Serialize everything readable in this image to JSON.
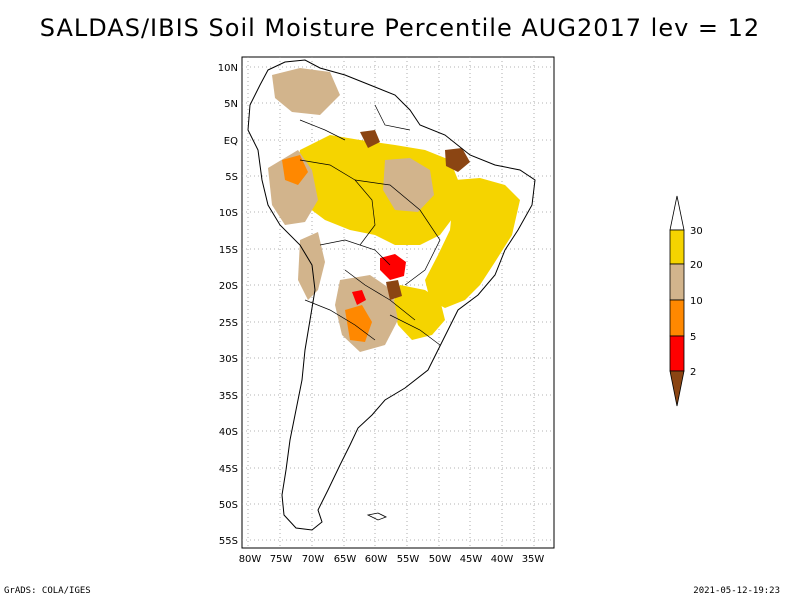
{
  "title": "SALDAS/IBIS Soil Moisture Percentile AUG2017 lev = 12",
  "map": {
    "lon_range": [
      -80,
      -30
    ],
    "lat_range": [
      -56,
      12
    ],
    "lat_ticks": [
      "10N",
      "5N",
      "EQ",
      "5S",
      "10S",
      "15S",
      "20S",
      "25S",
      "30S",
      "35S",
      "40S",
      "45S",
      "50S",
      "55S"
    ],
    "lon_ticks": [
      "80W",
      "75W",
      "70W",
      "65W",
      "60W",
      "55W",
      "50W",
      "45W",
      "40W",
      "35W"
    ],
    "grid": true
  },
  "legend": {
    "labels": [
      "30",
      "20",
      "10",
      "5",
      "2"
    ],
    "colors": [
      "#ffffff",
      "#f5d400",
      "#d2b48c",
      "#ff8800",
      "#ff0000",
      "#8b4513"
    ]
  },
  "footer": {
    "left": "GrADS: COLA/IGES",
    "right": "2021-05-12-19:23"
  }
}
